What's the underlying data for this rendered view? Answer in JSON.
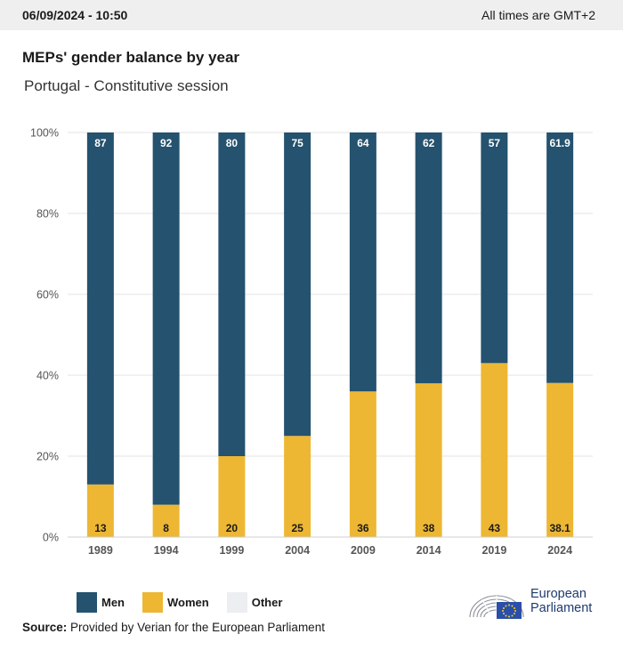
{
  "header": {
    "date": "06/09/2024 - 10:50",
    "timezone_note": "All times are GMT+2"
  },
  "title": "MEPs' gender balance by year",
  "subtitle": "Portugal - Constitutive session",
  "colors": {
    "men": "#24526f",
    "women": "#edb733",
    "other": "#eceef1",
    "grid": "#e3e3e3",
    "axis_text": "#555555"
  },
  "chart_data": {
    "type": "bar",
    "stacked": true,
    "categories": [
      "1989",
      "1994",
      "1999",
      "2004",
      "2009",
      "2014",
      "2019",
      "2024"
    ],
    "series": [
      {
        "name": "Women",
        "values": [
          13,
          8,
          20,
          25,
          36,
          38,
          43,
          38.1
        ],
        "labels": [
          "13",
          "8",
          "20",
          "25",
          "36",
          "38",
          "43",
          "38.1"
        ]
      },
      {
        "name": "Men",
        "values": [
          87,
          92,
          80,
          75,
          64,
          62,
          57,
          61.9
        ],
        "labels": [
          "87",
          "92",
          "80",
          "75",
          "64",
          "62",
          "57",
          "61.9"
        ]
      }
    ],
    "ylim": [
      0,
      100
    ],
    "yticks": [
      "0%",
      "20%",
      "40%",
      "60%",
      "80%",
      "100%"
    ],
    "grid": true
  },
  "legend": [
    {
      "label": "Men",
      "color": "#24526f"
    },
    {
      "label": "Women",
      "color": "#edb733"
    },
    {
      "label": "Other",
      "color": "#eceef1"
    }
  ],
  "source": {
    "label": "Source:",
    "text": "Provided by Verian for the European Parliament"
  },
  "logo": {
    "line1": "European",
    "line2": "Parliament"
  }
}
